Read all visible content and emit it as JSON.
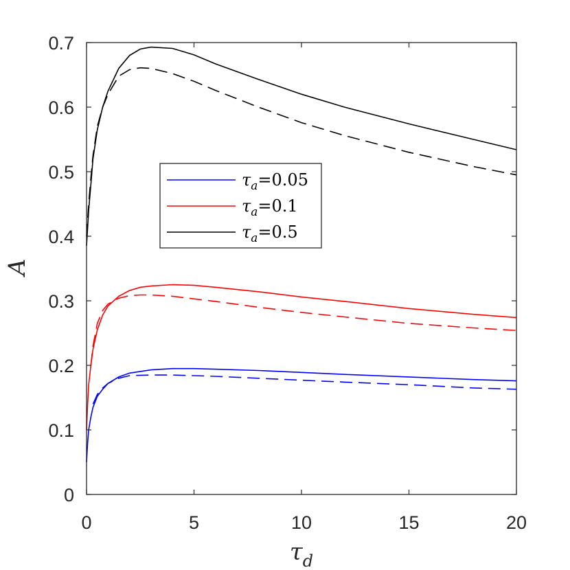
{
  "chart_data": {
    "type": "line",
    "title": "",
    "xlabel": "τ",
    "xlabel_sub": "d",
    "ylabel": "A",
    "xlim": [
      0,
      20
    ],
    "ylim": [
      0,
      0.7
    ],
    "xticks": [
      0,
      5,
      10,
      15,
      20
    ],
    "xtick_labels": [
      "0",
      "5",
      "10",
      "15",
      "20"
    ],
    "yticks": [
      0,
      0.1,
      0.2,
      0.3,
      0.4,
      0.5,
      0.6,
      0.7
    ],
    "ytick_labels": [
      "0",
      "0.1",
      "0.2",
      "0.3",
      "0.4",
      "0.5",
      "0.6",
      "0.7"
    ],
    "grid": false,
    "legend_position": "center-left",
    "series": [
      {
        "name": "τa=0.05",
        "legend_sym": "τ",
        "legend_sub": "a",
        "legend_val": "=0.05",
        "color": "#0000ff",
        "dash": false,
        "x": [
          0,
          0.05,
          0.1,
          0.2,
          0.3,
          0.5,
          0.75,
          1,
          1.5,
          2,
          3,
          4,
          5,
          6,
          8,
          10,
          12,
          15,
          18,
          20
        ],
        "y": [
          0.05,
          0.08,
          0.1,
          0.12,
          0.135,
          0.152,
          0.163,
          0.172,
          0.182,
          0.188,
          0.193,
          0.195,
          0.195,
          0.194,
          0.192,
          0.189,
          0.186,
          0.182,
          0.178,
          0.176
        ]
      },
      {
        "name": "τa=0.05 dashed",
        "color": "#0000ff",
        "dash": true,
        "x": [
          0.3,
          0.5,
          0.75,
          1,
          1.5,
          2,
          3,
          4,
          5,
          6,
          8,
          10,
          12,
          15,
          18,
          20
        ],
        "y": [
          0.14,
          0.155,
          0.165,
          0.172,
          0.18,
          0.184,
          0.185,
          0.185,
          0.184,
          0.183,
          0.18,
          0.177,
          0.174,
          0.17,
          0.165,
          0.163
        ]
      },
      {
        "name": "τa=0.1",
        "legend_sym": "τ",
        "legend_sub": "a",
        "legend_val": "=0.1",
        "color": "#ff0000",
        "dash": false,
        "x": [
          0,
          0.05,
          0.1,
          0.2,
          0.3,
          0.5,
          0.75,
          1,
          1.5,
          2,
          2.5,
          3,
          4,
          5,
          6,
          8,
          10,
          12,
          15,
          18,
          20
        ],
        "y": [
          0.1,
          0.14,
          0.17,
          0.2,
          0.225,
          0.255,
          0.278,
          0.292,
          0.307,
          0.316,
          0.321,
          0.323,
          0.325,
          0.324,
          0.321,
          0.314,
          0.306,
          0.299,
          0.288,
          0.279,
          0.274
        ]
      },
      {
        "name": "τa=0.1 dashed",
        "color": "#ff0000",
        "dash": true,
        "x": [
          0.2,
          0.3,
          0.5,
          0.75,
          1,
          1.5,
          2,
          2.5,
          3,
          4,
          5,
          6,
          8,
          10,
          12,
          15,
          18,
          20
        ],
        "y": [
          0.2,
          0.23,
          0.265,
          0.285,
          0.295,
          0.304,
          0.308,
          0.309,
          0.309,
          0.307,
          0.303,
          0.299,
          0.29,
          0.282,
          0.275,
          0.265,
          0.258,
          0.254
        ]
      },
      {
        "name": "τa=0.5",
        "legend_sym": "τ",
        "legend_sub": "a",
        "legend_val": "=0.5",
        "color": "#000000",
        "dash": false,
        "x": [
          0,
          0.1,
          0.2,
          0.3,
          0.5,
          0.75,
          1,
          1.5,
          2,
          2.5,
          3,
          4,
          5,
          6,
          8,
          10,
          12,
          15,
          18,
          20
        ],
        "y": [
          0.385,
          0.44,
          0.48,
          0.52,
          0.565,
          0.6,
          0.625,
          0.66,
          0.68,
          0.69,
          0.693,
          0.691,
          0.681,
          0.667,
          0.643,
          0.62,
          0.6,
          0.574,
          0.55,
          0.534
        ]
      },
      {
        "name": "τa=0.5 dashed",
        "color": "#000000",
        "dash": true,
        "x": [
          0,
          0.1,
          0.2,
          0.3,
          0.5,
          0.75,
          1,
          1.5,
          2,
          2.5,
          3,
          4,
          5,
          6,
          8,
          10,
          12,
          15,
          18,
          20
        ],
        "y": [
          0.4,
          0.45,
          0.49,
          0.525,
          0.57,
          0.6,
          0.62,
          0.648,
          0.658,
          0.661,
          0.66,
          0.652,
          0.64,
          0.626,
          0.6,
          0.576,
          0.556,
          0.53,
          0.508,
          0.495
        ]
      }
    ]
  }
}
